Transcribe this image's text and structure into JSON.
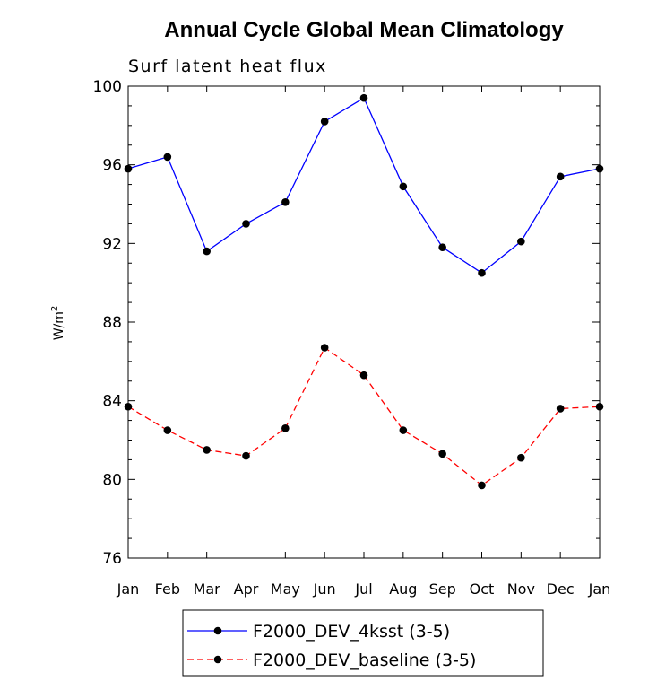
{
  "chart_data": {
    "type": "line",
    "title": "Annual Cycle Global Mean Climatology",
    "subtitle": "Surf latent heat flux",
    "ylabel": "W/m",
    "ylabel_sup": "2",
    "xlabel": "",
    "x": [
      "Jan",
      "Feb",
      "Mar",
      "Apr",
      "May",
      "Jun",
      "Jul",
      "Aug",
      "Sep",
      "Oct",
      "Nov",
      "Dec",
      "Jan"
    ],
    "ylim": [
      76,
      100
    ],
    "yticks": [
      "76",
      "80",
      "84",
      "88",
      "92",
      "96",
      "100"
    ],
    "grid": false,
    "legend_position": "bottom",
    "series": [
      {
        "name": "F2000_DEV_4ksst (3-5)",
        "color": "#0000ff",
        "line_style": "solid",
        "marker": "filled-circle",
        "values": [
          95.8,
          96.4,
          91.6,
          93.0,
          94.1,
          98.2,
          99.4,
          94.9,
          91.8,
          90.5,
          92.1,
          95.4,
          95.8
        ]
      },
      {
        "name": "F2000_DEV_baseline (3-5)",
        "color": "#ff0000",
        "line_style": "dashed",
        "marker": "filled-circle",
        "values": [
          83.7,
          82.5,
          81.5,
          81.2,
          82.6,
          86.7,
          85.3,
          82.5,
          81.3,
          79.7,
          81.1,
          83.6,
          83.7
        ]
      }
    ]
  }
}
